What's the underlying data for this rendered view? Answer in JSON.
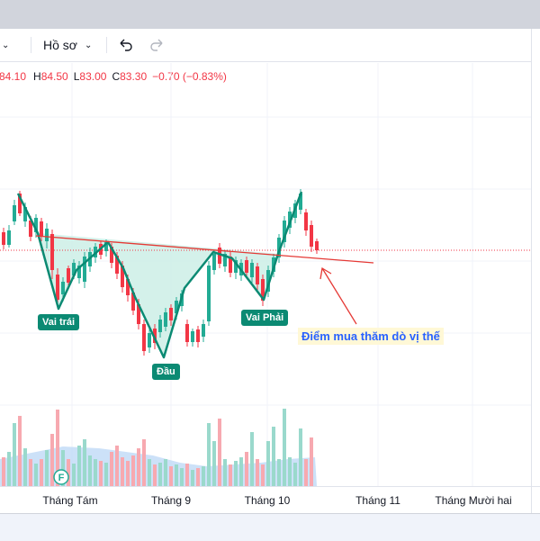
{
  "toolbar": {
    "profile_label": "Hồ sơ",
    "undo_icon": "undo-icon",
    "redo_icon": "redo-icon"
  },
  "legend": {
    "open": "84.10",
    "high_prefix": "H",
    "high": "84.50",
    "low_prefix": "L",
    "low": "83.00",
    "close_prefix": "C",
    "close": "83.30",
    "change": "−0.70 (−0.83%)"
  },
  "annotations": {
    "left_shoulder": "Vai trái",
    "head": "Đầu",
    "right_shoulder": "Vai Phải",
    "buy_point": "Điểm mua thăm dò vị thế",
    "volume_flag": "F"
  },
  "xaxis": {
    "labels": [
      "Tháng Tám",
      "Tháng 9",
      "Tháng 10",
      "Tháng 11",
      "Tháng Mười hai"
    ]
  },
  "colors": {
    "up": "#22ab94",
    "down": "#f23645",
    "pattern_fill": "#c8ebe3",
    "neckline": "#e53935",
    "zigzag": "#0b8a73",
    "volume_up": "#9ad9cc",
    "volume_down": "#f7a9b0",
    "volume_area": "#b6d4f5"
  }
}
